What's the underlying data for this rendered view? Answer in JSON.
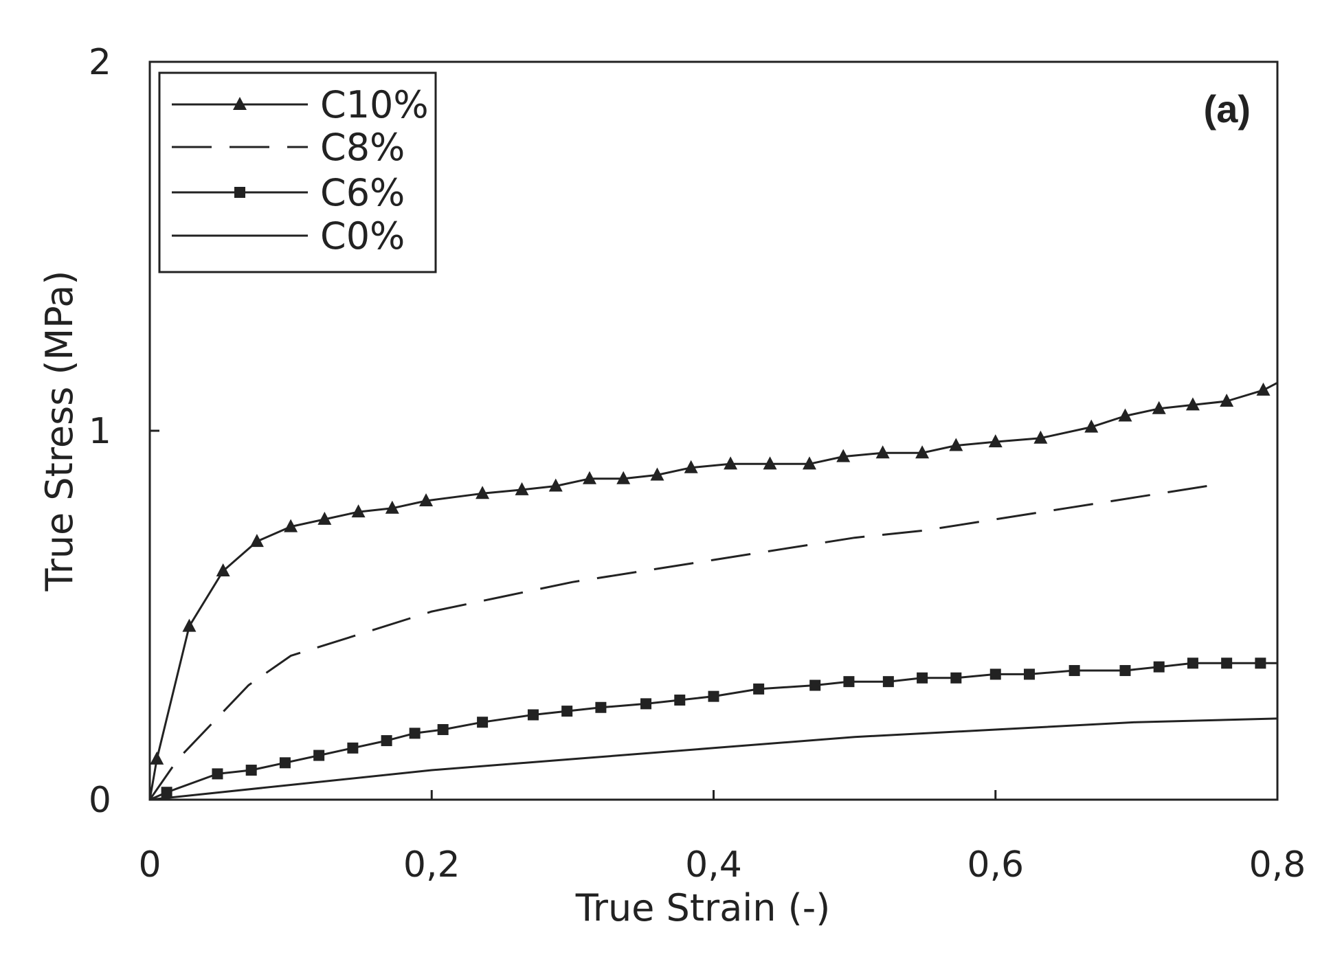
{
  "chart_data": {
    "type": "line",
    "panel_label": "(a)",
    "xlabel": "True Strain (-)",
    "ylabel": "True Stress (MPa)",
    "xlim": [
      0,
      0.8
    ],
    "ylim": [
      0,
      2
    ],
    "x_ticks": [
      0,
      0.2,
      0.4,
      0.6,
      0.8
    ],
    "x_tick_labels": [
      "0",
      "0,2",
      "0,4",
      "0,6",
      "0,8"
    ],
    "y_ticks": [
      0,
      1,
      2
    ],
    "y_tick_labels": [
      "0",
      "1",
      "2"
    ],
    "grid": false,
    "legend_position": "top-left",
    "series": [
      {
        "name": "C10%",
        "line": "solid",
        "marker": "triangle",
        "x": [
          0,
          0.005,
          0.028,
          0.052,
          0.076,
          0.1,
          0.124,
          0.148,
          0.172,
          0.196,
          0.236,
          0.264,
          0.288,
          0.312,
          0.336,
          0.36,
          0.384,
          0.412,
          0.44,
          0.468,
          0.492,
          0.52,
          0.548,
          0.572,
          0.6,
          0.632,
          0.668,
          0.692,
          0.716,
          0.74,
          0.764,
          0.79,
          0.8
        ],
        "y": [
          0,
          0.11,
          0.47,
          0.62,
          0.7,
          0.74,
          0.76,
          0.78,
          0.79,
          0.81,
          0.83,
          0.84,
          0.85,
          0.87,
          0.87,
          0.88,
          0.9,
          0.91,
          0.91,
          0.91,
          0.93,
          0.94,
          0.94,
          0.96,
          0.97,
          0.98,
          1.01,
          1.04,
          1.06,
          1.07,
          1.08,
          1.11,
          1.13
        ]
      },
      {
        "name": "C8%",
        "line": "dashed",
        "marker": "none",
        "x": [
          0,
          0.02,
          0.045,
          0.07,
          0.1,
          0.15,
          0.2,
          0.25,
          0.3,
          0.35,
          0.4,
          0.45,
          0.5,
          0.55,
          0.6,
          0.65,
          0.7,
          0.75
        ],
        "y": [
          0,
          0.11,
          0.21,
          0.31,
          0.39,
          0.45,
          0.51,
          0.55,
          0.59,
          0.62,
          0.65,
          0.68,
          0.71,
          0.73,
          0.76,
          0.79,
          0.82,
          0.85
        ]
      },
      {
        "name": "C6%",
        "line": "solid",
        "marker": "square",
        "x": [
          0,
          0.012,
          0.048,
          0.072,
          0.096,
          0.12,
          0.144,
          0.168,
          0.188,
          0.208,
          0.236,
          0.272,
          0.296,
          0.32,
          0.352,
          0.376,
          0.4,
          0.432,
          0.472,
          0.496,
          0.524,
          0.548,
          0.572,
          0.6,
          0.624,
          0.656,
          0.692,
          0.716,
          0.74,
          0.764,
          0.788,
          0.8
        ],
        "y": [
          0,
          0.02,
          0.07,
          0.08,
          0.1,
          0.12,
          0.14,
          0.16,
          0.18,
          0.19,
          0.21,
          0.23,
          0.24,
          0.25,
          0.26,
          0.27,
          0.28,
          0.3,
          0.31,
          0.32,
          0.32,
          0.33,
          0.33,
          0.34,
          0.34,
          0.35,
          0.35,
          0.36,
          0.37,
          0.37,
          0.37,
          0.37
        ]
      },
      {
        "name": "C0%",
        "line": "solid",
        "marker": "none",
        "x": [
          0,
          0.1,
          0.2,
          0.3,
          0.4,
          0.5,
          0.6,
          0.7,
          0.8
        ],
        "y": [
          0,
          0.04,
          0.08,
          0.11,
          0.14,
          0.17,
          0.19,
          0.21,
          0.22
        ]
      }
    ]
  }
}
